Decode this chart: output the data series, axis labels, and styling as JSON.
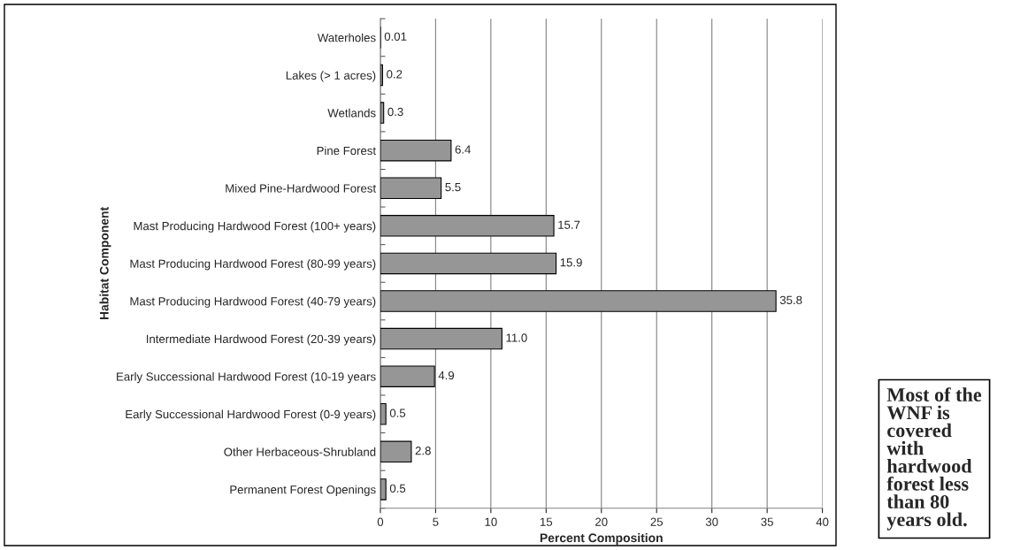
{
  "chart_data": {
    "type": "bar",
    "orientation": "horizontal",
    "xlabel": "Percent Composition",
    "ylabel": "Habitat Component",
    "categories": [
      "Waterholes",
      "Lakes (> 1 acres)",
      "Wetlands",
      "Pine Forest",
      "Mixed Pine-Hardwood Forest",
      "Mast Producing Hardwood Forest (100+ years)",
      "Mast Producing Hardwood Forest (80-99 years)",
      "Mast Producing Hardwood Forest (40-79 years)",
      "Intermediate Hardwood Forest (20-39 years)",
      "Early Successional Hardwood Forest (10-19 years",
      "Early Successional Hardwood Forest (0-9 years)",
      "Other Herbaceous-Shrubland",
      "Permanent Forest Openings"
    ],
    "values": [
      0.01,
      0.2,
      0.3,
      6.4,
      5.5,
      15.7,
      15.9,
      35.8,
      11.0,
      4.9,
      0.5,
      2.8,
      0.5
    ],
    "value_labels": [
      "0.01",
      "0.2",
      "0.3",
      "6.4",
      "5.5",
      "15.7",
      "15.9",
      "35.8",
      "11.0",
      "4.9",
      "0.5",
      "2.8",
      "0.5"
    ],
    "color": "#969696",
    "xlim": [
      0,
      40
    ],
    "xticks": [
      0,
      5,
      10,
      15,
      20,
      25,
      30,
      35,
      40
    ],
    "grid": "x",
    "annotations": [
      "Most of the WNF is covered with hardwood forest less than 80 years old."
    ]
  }
}
